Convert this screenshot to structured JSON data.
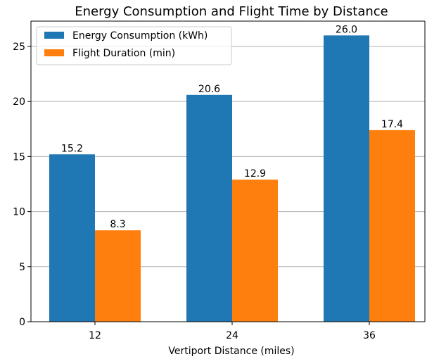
{
  "chart_data": {
    "type": "bar",
    "title": "Energy Consumption and Flight Time by Distance",
    "xlabel": "Vertiport Distance (miles)",
    "ylabel": "",
    "categories": [
      "12",
      "24",
      "36"
    ],
    "ylim": [
      0,
      27.3
    ],
    "y_ticks": [
      0,
      5,
      10,
      15,
      20,
      25
    ],
    "grid": "y-axis horizontal gridlines",
    "legend_position": "top-left",
    "series": [
      {
        "name": "Energy Consumption (kWh)",
        "values": [
          15.2,
          20.6,
          26.0
        ],
        "labels": [
          "15.2",
          "20.6",
          "26.0"
        ],
        "color": "#1f77b4"
      },
      {
        "name": "Flight Duration (min)",
        "values": [
          8.3,
          12.9,
          17.4
        ],
        "labels": [
          "8.3",
          "12.9",
          "17.4"
        ],
        "color": "#ff7f0e"
      }
    ]
  }
}
